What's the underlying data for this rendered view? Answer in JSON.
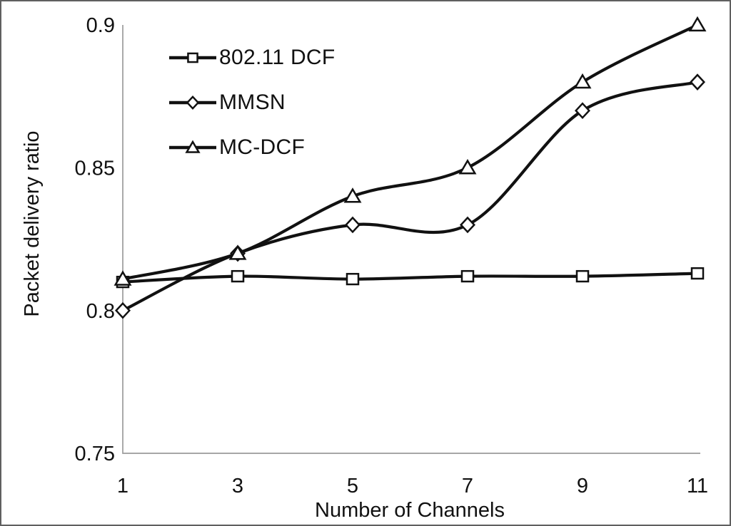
{
  "figure": {
    "background": "#ffffff",
    "border_color": "#606060"
  },
  "colors": {
    "line": "#111111",
    "axis": "#9b9b9b",
    "text": "#111111",
    "marker_fill": "#ffffff"
  },
  "chart_data": {
    "type": "line",
    "title": "",
    "xlabel": "Number of Channels",
    "ylabel": "Packet delivery ratio",
    "x": [
      1,
      3,
      5,
      7,
      9,
      11
    ],
    "xtick_labels": [
      "1",
      "3",
      "5",
      "7",
      "9",
      "11"
    ],
    "yticks": [
      0.9,
      0.85,
      0.8,
      0.75
    ],
    "ytick_labels": [
      "0.9",
      "0.85",
      "0.8",
      "0.75"
    ],
    "xlim": [
      1,
      11
    ],
    "ylim": [
      0.75,
      0.9
    ],
    "grid": false,
    "line_smoothing": true,
    "legend_position": "upper-left-inside",
    "series": [
      {
        "name": "802.11 DCF",
        "marker": "square",
        "values": [
          0.81,
          0.812,
          0.811,
          0.812,
          0.812,
          0.813
        ]
      },
      {
        "name": "MMSN",
        "marker": "diamond",
        "values": [
          0.8,
          0.82,
          0.83,
          0.83,
          0.87,
          0.88
        ]
      },
      {
        "name": "MC-DCF",
        "marker": "triangle",
        "values": [
          0.811,
          0.82,
          0.84,
          0.85,
          0.88,
          0.9
        ]
      }
    ]
  }
}
